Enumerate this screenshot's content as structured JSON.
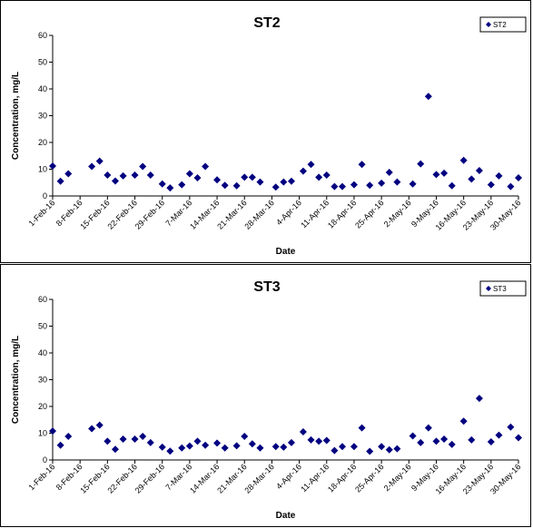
{
  "chart_data": [
    {
      "type": "scatter",
      "title": "ST2",
      "xlabel": "Date",
      "ylabel": "Concentration, mg/L",
      "ylim": [
        0,
        60
      ],
      "yticks": [
        "0",
        "10",
        "20",
        "30",
        "40",
        "50",
        "60"
      ],
      "xlim": [
        "2016-02-01",
        "2016-05-30"
      ],
      "xticks": [
        "1-Feb-16",
        "8-Feb-16",
        "15-Feb-16",
        "22-Feb-16",
        "29-Feb-16",
        "7-Mar-16",
        "14-Mar-16",
        "21-Mar-16",
        "28-Mar-16",
        "4-Apr-16",
        "11-Apr-16",
        "18-Apr-16",
        "25-Apr-16",
        "2-May-16",
        "9-May-16",
        "16-May-16",
        "23-May-16",
        "30-May-16"
      ],
      "grid": false,
      "legend": "top-right",
      "series": [
        {
          "name": "ST2",
          "color": "#000080",
          "marker": "diamond",
          "points": [
            [
              "2016-02-01",
              11.2
            ],
            [
              "2016-02-03",
              5.5
            ],
            [
              "2016-02-05",
              8.3
            ],
            [
              "2016-02-11",
              11.0
            ],
            [
              "2016-02-13",
              13.0
            ],
            [
              "2016-02-15",
              7.8
            ],
            [
              "2016-02-17",
              5.6
            ],
            [
              "2016-02-19",
              7.5
            ],
            [
              "2016-02-22",
              7.8
            ],
            [
              "2016-02-24",
              11.0
            ],
            [
              "2016-02-26",
              7.8
            ],
            [
              "2016-02-29",
              4.5
            ],
            [
              "2016-03-02",
              3.0
            ],
            [
              "2016-03-05",
              4.2
            ],
            [
              "2016-03-07",
              8.3
            ],
            [
              "2016-03-09",
              6.8
            ],
            [
              "2016-03-11",
              11.0
            ],
            [
              "2016-03-14",
              6.0
            ],
            [
              "2016-03-16",
              4.0
            ],
            [
              "2016-03-19",
              3.8
            ],
            [
              "2016-03-21",
              7.0
            ],
            [
              "2016-03-23",
              7.0
            ],
            [
              "2016-03-25",
              5.2
            ],
            [
              "2016-03-29",
              3.3
            ],
            [
              "2016-03-31",
              5.2
            ],
            [
              "2016-04-02",
              5.5
            ],
            [
              "2016-04-05",
              9.3
            ],
            [
              "2016-04-07",
              11.8
            ],
            [
              "2016-04-09",
              7.0
            ],
            [
              "2016-04-11",
              7.8
            ],
            [
              "2016-04-13",
              3.5
            ],
            [
              "2016-04-15",
              3.5
            ],
            [
              "2016-04-18",
              4.2
            ],
            [
              "2016-04-20",
              11.8
            ],
            [
              "2016-04-22",
              4.0
            ],
            [
              "2016-04-25",
              4.8
            ],
            [
              "2016-04-27",
              8.8
            ],
            [
              "2016-04-29",
              5.2
            ],
            [
              "2016-05-03",
              4.5
            ],
            [
              "2016-05-05",
              12.0
            ],
            [
              "2016-05-07",
              37.2
            ],
            [
              "2016-05-09",
              8.0
            ],
            [
              "2016-05-11",
              8.5
            ],
            [
              "2016-05-13",
              3.8
            ],
            [
              "2016-05-16",
              13.3
            ],
            [
              "2016-05-18",
              6.3
            ],
            [
              "2016-05-20",
              9.5
            ],
            [
              "2016-05-23",
              4.2
            ],
            [
              "2016-05-25",
              7.5
            ],
            [
              "2016-05-28",
              3.5
            ],
            [
              "2016-05-30",
              6.8
            ]
          ]
        }
      ]
    },
    {
      "type": "scatter",
      "title": "ST3",
      "xlabel": "Date",
      "ylabel": "Concentration, mg/L",
      "ylim": [
        0,
        60
      ],
      "yticks": [
        "0",
        "10",
        "20",
        "30",
        "40",
        "50",
        "60"
      ],
      "xlim": [
        "2016-02-01",
        "2016-05-30"
      ],
      "xticks": [
        "1-Feb-16",
        "8-Feb-16",
        "15-Feb-16",
        "22-Feb-16",
        "29-Feb-16",
        "7-Mar-16",
        "14-Mar-16",
        "21-Mar-16",
        "28-Mar-16",
        "4-Apr-16",
        "11-Apr-16",
        "18-Apr-16",
        "25-Apr-16",
        "2-May-16",
        "9-May-16",
        "16-May-16",
        "23-May-16",
        "30-May-16"
      ],
      "grid": false,
      "legend": "top-right",
      "series": [
        {
          "name": "ST3",
          "color": "#000080",
          "marker": "diamond",
          "points": [
            [
              "2016-02-01",
              10.8
            ],
            [
              "2016-02-03",
              5.5
            ],
            [
              "2016-02-05",
              8.8
            ],
            [
              "2016-02-11",
              11.7
            ],
            [
              "2016-02-13",
              13.0
            ],
            [
              "2016-02-15",
              7.0
            ],
            [
              "2016-02-17",
              4.0
            ],
            [
              "2016-02-19",
              7.8
            ],
            [
              "2016-02-22",
              7.8
            ],
            [
              "2016-02-24",
              8.8
            ],
            [
              "2016-02-26",
              6.5
            ],
            [
              "2016-02-29",
              4.8
            ],
            [
              "2016-03-02",
              3.3
            ],
            [
              "2016-03-05",
              4.5
            ],
            [
              "2016-03-07",
              5.2
            ],
            [
              "2016-03-09",
              7.0
            ],
            [
              "2016-03-11",
              5.5
            ],
            [
              "2016-03-14",
              6.3
            ],
            [
              "2016-03-16",
              4.5
            ],
            [
              "2016-03-19",
              5.3
            ],
            [
              "2016-03-21",
              8.8
            ],
            [
              "2016-03-23",
              6.0
            ],
            [
              "2016-03-25",
              4.5
            ],
            [
              "2016-03-29",
              5.0
            ],
            [
              "2016-03-31",
              4.8
            ],
            [
              "2016-04-02",
              6.5
            ],
            [
              "2016-04-05",
              10.5
            ],
            [
              "2016-04-07",
              7.5
            ],
            [
              "2016-04-09",
              7.0
            ],
            [
              "2016-04-11",
              7.3
            ],
            [
              "2016-04-13",
              3.5
            ],
            [
              "2016-04-15",
              5.0
            ],
            [
              "2016-04-18",
              5.0
            ],
            [
              "2016-04-20",
              12.0
            ],
            [
              "2016-04-22",
              3.2
            ],
            [
              "2016-04-25",
              5.0
            ],
            [
              "2016-04-27",
              3.8
            ],
            [
              "2016-04-29",
              4.2
            ],
            [
              "2016-05-03",
              9.0
            ],
            [
              "2016-05-05",
              6.5
            ],
            [
              "2016-05-07",
              12.0
            ],
            [
              "2016-05-09",
              7.0
            ],
            [
              "2016-05-11",
              7.8
            ],
            [
              "2016-05-13",
              5.8
            ],
            [
              "2016-05-16",
              14.5
            ],
            [
              "2016-05-18",
              7.5
            ],
            [
              "2016-05-20",
              23.0
            ],
            [
              "2016-05-23",
              6.8
            ],
            [
              "2016-05-25",
              9.3
            ],
            [
              "2016-05-28",
              12.3
            ],
            [
              "2016-05-30",
              8.3
            ]
          ]
        }
      ]
    }
  ]
}
